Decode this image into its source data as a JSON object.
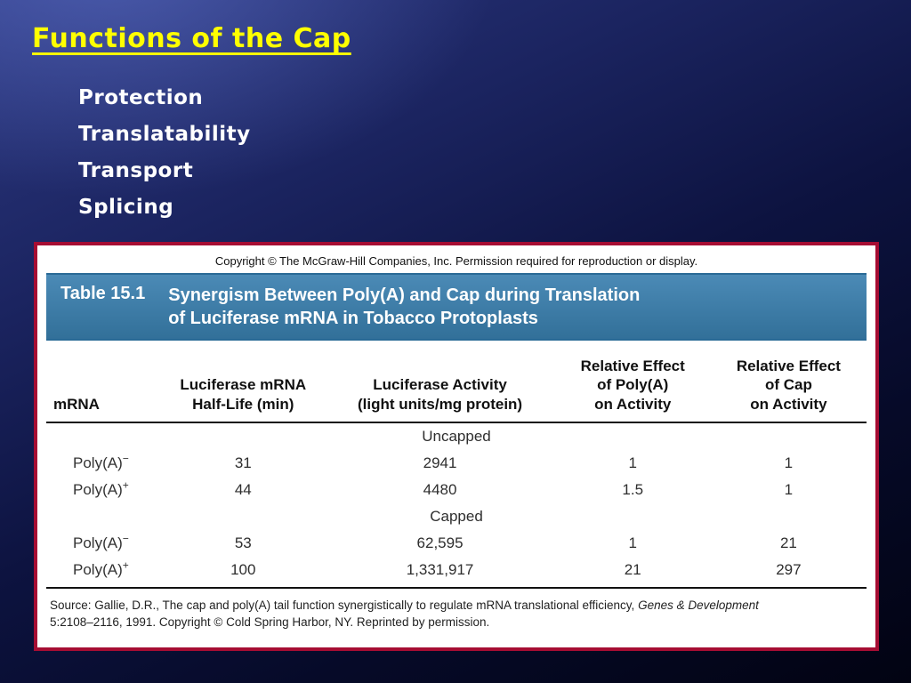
{
  "slide": {
    "title": "Functions of the Cap",
    "bullets": [
      "Protection",
      "Translatability",
      "Transport",
      "Splicing"
    ]
  },
  "figure": {
    "copyright": "Copyright © The McGraw-Hill Companies, Inc. Permission required for reproduction or display.",
    "table_label": "Table 15.1",
    "table_title": "Synergism Between Poly(A) and Cap during Translation\nof Luciferase mRNA in Tobacco Protoplasts",
    "columns": [
      "mRNA",
      "Luciferase mRNA\nHalf-Life (min)",
      "Luciferase Activity\n(light units/mg protein)",
      "Relative Effect\nof Poly(A)\non Activity",
      "Relative Effect\nof Cap\non Activity"
    ],
    "groups": [
      {
        "name": "Uncapped",
        "rows": [
          {
            "label": "Poly(A)",
            "sup": "−",
            "values": [
              "31",
              "2941",
              "1",
              "1"
            ]
          },
          {
            "label": "Poly(A)",
            "sup": "+",
            "values": [
              "44",
              "4480",
              "1.5",
              "1"
            ]
          }
        ]
      },
      {
        "name": "Capped",
        "rows": [
          {
            "label": "Poly(A)",
            "sup": "−",
            "values": [
              "53",
              "62,595",
              "1",
              "21"
            ]
          },
          {
            "label": "Poly(A)",
            "sup": "+",
            "values": [
              "100",
              "1,331,917",
              "21",
              "297"
            ]
          }
        ]
      }
    ],
    "source_text": "Source: Gallie, D.R., The cap and poly(A) tail function synergistically to regulate mRNA translational efficiency, ",
    "source_italic": "Genes & Development",
    "source_line2": "5:2108–2116, 1991. Copyright © Cold Spring Harbor, NY. Reprinted by permission."
  }
}
